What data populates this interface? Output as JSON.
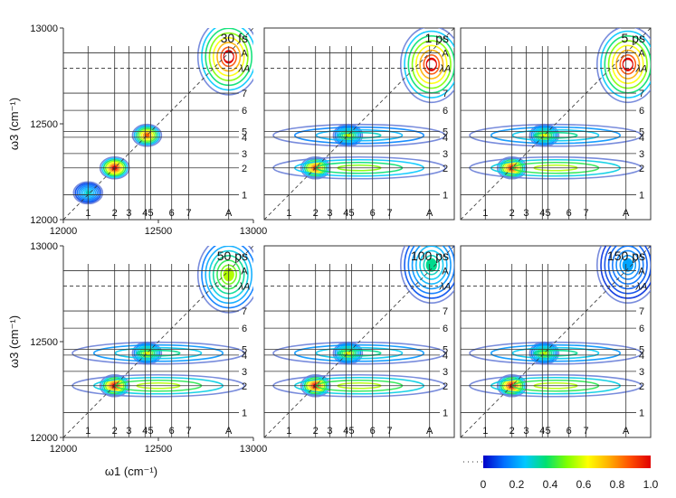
{
  "chart_data": {
    "type": "heatmap",
    "description_kind": "2D electronic spectroscopy contour maps",
    "xlabel": "ω1 (cm⁻¹)",
    "ylabel": "ω3 (cm⁻¹)",
    "axis_ticks": [
      "12000",
      "12500",
      "13000"
    ],
    "xlim": [
      12000,
      13000
    ],
    "ylim": [
      12000,
      13000
    ],
    "peak_labels": [
      "1",
      "2",
      "3",
      "4",
      "5",
      "6",
      "7",
      "A"
    ],
    "peak_positions": {
      "1": 12130,
      "2": 12270,
      "3": 12345,
      "4": 12430,
      "5": 12460,
      "6": 12570,
      "7": 12660,
      "A": 12870
    },
    "lambda_label": "λA",
    "lambda_position": 12790,
    "panels": [
      {
        "time": "30 fs",
        "row": 0,
        "col": 0,
        "framed": false,
        "axes": true,
        "peaks": [
          {
            "x": 12270,
            "y": 12270,
            "amp": 1.0
          },
          {
            "x": 12440,
            "y": 12440,
            "amp": 0.85
          },
          {
            "x": 12130,
            "y": 12140,
            "amp": 0.3
          },
          {
            "x": 12870,
            "y": 12850,
            "amp": 1.0,
            "wide": true
          }
        ]
      },
      {
        "time": "1 ps",
        "row": 0,
        "col": 1,
        "framed": true,
        "axes": false,
        "peaks": [
          {
            "x": 12880,
            "y": 12810,
            "amp": 1.0,
            "wide": true
          },
          {
            "x": 12270,
            "y": 12270,
            "amp": 0.9
          },
          {
            "x": 12440,
            "y": 12440,
            "amp": 0.55
          },
          {
            "x": 12500,
            "y": 12270,
            "amp": 0.5,
            "band": true
          },
          {
            "x": 12500,
            "y": 12440,
            "amp": 0.3,
            "band": true
          }
        ]
      },
      {
        "time": "5 ps",
        "row": 0,
        "col": 2,
        "framed": true,
        "axes": false,
        "peaks": [
          {
            "x": 12880,
            "y": 12810,
            "amp": 1.0,
            "wide": true
          },
          {
            "x": 12270,
            "y": 12270,
            "amp": 0.95
          },
          {
            "x": 12440,
            "y": 12440,
            "amp": 0.6
          },
          {
            "x": 12500,
            "y": 12270,
            "amp": 0.55,
            "band": true
          },
          {
            "x": 12500,
            "y": 12440,
            "amp": 0.35,
            "band": true
          }
        ]
      },
      {
        "time": "50 ps",
        "row": 1,
        "col": 0,
        "framed": false,
        "axes": true,
        "peaks": [
          {
            "x": 12870,
            "y": 12850,
            "amp": 0.55,
            "wide": true
          },
          {
            "x": 12270,
            "y": 12270,
            "amp": 1.0
          },
          {
            "x": 12440,
            "y": 12440,
            "amp": 0.6
          },
          {
            "x": 12500,
            "y": 12270,
            "amp": 0.55,
            "band": true
          },
          {
            "x": 12500,
            "y": 12440,
            "amp": 0.35,
            "band": true
          }
        ]
      },
      {
        "time": "100 ps",
        "row": 1,
        "col": 1,
        "framed": true,
        "axes": false,
        "peaks": [
          {
            "x": 12880,
            "y": 12900,
            "amp": 0.35,
            "wide": true
          },
          {
            "x": 12270,
            "y": 12270,
            "amp": 1.0
          },
          {
            "x": 12440,
            "y": 12440,
            "amp": 0.6
          },
          {
            "x": 12500,
            "y": 12270,
            "amp": 0.55,
            "band": true
          },
          {
            "x": 12500,
            "y": 12440,
            "amp": 0.35,
            "band": true
          }
        ]
      },
      {
        "time": "150 ps",
        "row": 1,
        "col": 2,
        "framed": true,
        "axes": false,
        "peaks": [
          {
            "x": 12880,
            "y": 12900,
            "amp": 0.2,
            "wide": true
          },
          {
            "x": 12270,
            "y": 12270,
            "amp": 1.0
          },
          {
            "x": 12440,
            "y": 12440,
            "amp": 0.55
          },
          {
            "x": 12500,
            "y": 12270,
            "amp": 0.55,
            "band": true
          },
          {
            "x": 12500,
            "y": 12440,
            "amp": 0.35,
            "band": true
          }
        ]
      }
    ],
    "colorbar": {
      "ticks": [
        "0",
        "0.2",
        "0.4",
        "0.6",
        "0.8",
        "1.0"
      ],
      "range": [
        0,
        1
      ],
      "colors": [
        "#0000c8",
        "#0070ff",
        "#00c8ff",
        "#00e070",
        "#80ff00",
        "#ffff00",
        "#ffb000",
        "#ff5000",
        "#e00000"
      ]
    },
    "contour_low_color": "#6a7fd8"
  }
}
